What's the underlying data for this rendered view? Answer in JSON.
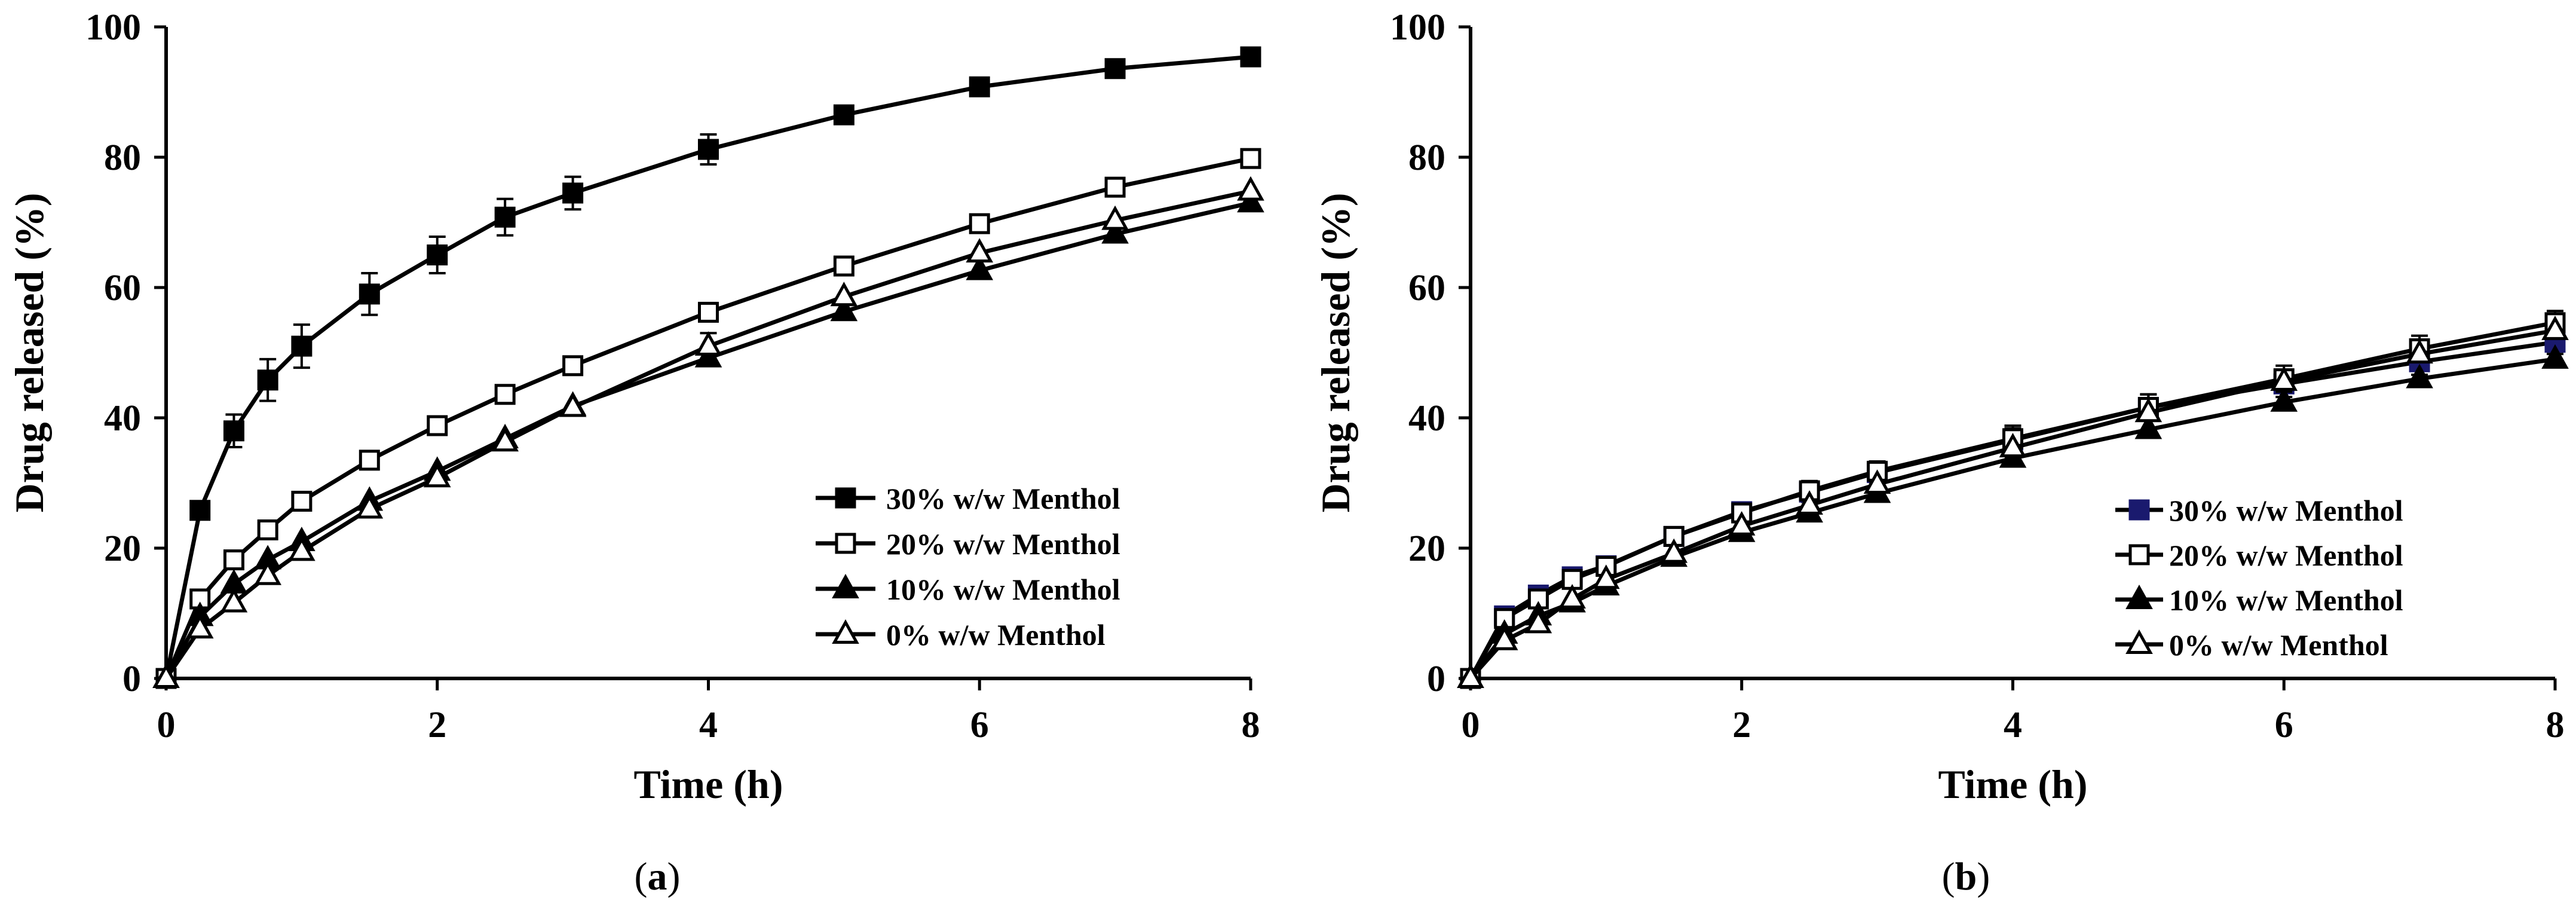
{
  "chart_data": [
    {
      "id": "a",
      "type": "line",
      "caption": {
        "open": "(",
        "letter": "a",
        "close": ")"
      },
      "xlabel": "Time (h)",
      "ylabel": "Drug released (%)",
      "xlim": [
        0,
        8
      ],
      "ylim": [
        0,
        100
      ],
      "xticks": [
        "0",
        "2",
        "4",
        "6",
        "8"
      ],
      "yticks": [
        "0",
        "20",
        "40",
        "60",
        "80",
        "100"
      ],
      "grid": false,
      "legend": "center-right",
      "x": [
        0,
        0.25,
        0.5,
        0.75,
        1,
        1.5,
        2,
        2.5,
        3,
        4,
        5,
        6,
        7,
        8
      ],
      "series": [
        {
          "name": "30% w/w Menthol",
          "marker": "square-filled",
          "color": "#000000",
          "values": [
            0,
            25.8,
            38,
            45.8,
            51,
            59,
            65,
            70.8,
            74.5,
            81.2,
            86.5,
            90.8,
            93.6,
            95.4
          ],
          "errors": [
            0,
            0.8,
            2.5,
            3.2,
            3.3,
            3.2,
            2.8,
            2.8,
            2.5,
            2.3,
            1.3,
            1.0,
            1.0,
            0.8
          ]
        },
        {
          "name": "20% w/w Menthol",
          "marker": "square-open",
          "color": "#000000",
          "values": [
            0,
            12.2,
            18.2,
            22.8,
            27.2,
            33.5,
            38.8,
            43.6,
            48,
            56.2,
            63.3,
            69.8,
            75.4,
            79.8
          ],
          "errors": [
            0,
            0.6,
            0.8,
            0.8,
            0.8,
            0.8,
            0.8,
            0.8,
            0.8,
            1.0,
            0.8,
            0.8,
            0.8,
            0.8
          ]
        },
        {
          "name": "10% w/w Menthol",
          "marker": "triangle-filled",
          "color": "#000000",
          "values": [
            0,
            9.5,
            14.5,
            18.2,
            21,
            27.2,
            31.8,
            36.8,
            41.8,
            49.2,
            56.3,
            62.6,
            68.2,
            73
          ],
          "errors": [
            0,
            0.5,
            0.6,
            0.6,
            0.6,
            0.6,
            0.8,
            0.8,
            0.8,
            0.9,
            0.8,
            0.8,
            0.8,
            0.8
          ]
        },
        {
          "name": "0% w/w Menthol",
          "marker": "triangle-open",
          "color": "#000000",
          "values": [
            0,
            7.6,
            11.6,
            15.8,
            19.5,
            26,
            30.8,
            36.3,
            41.6,
            51,
            58.6,
            65.3,
            70.3,
            74.8
          ],
          "errors": [
            0,
            0.5,
            0.6,
            0.6,
            0.6,
            0.8,
            0.8,
            0.8,
            0.8,
            2.0,
            0.8,
            0.8,
            0.8,
            0.8
          ]
        }
      ]
    },
    {
      "id": "b",
      "type": "line",
      "caption": {
        "open": "(",
        "letter": "b",
        "close": ")"
      },
      "xlabel": "Time (h)",
      "ylabel": "Drug released (%)",
      "xlim": [
        0,
        8
      ],
      "ylim": [
        0,
        100
      ],
      "xticks": [
        "0",
        "2",
        "4",
        "6",
        "8"
      ],
      "yticks": [
        "0",
        "20",
        "40",
        "60",
        "80",
        "100"
      ],
      "grid": false,
      "legend": "center-right",
      "x": [
        0,
        0.25,
        0.5,
        0.75,
        1,
        1.5,
        2,
        2.5,
        3,
        4,
        5,
        6,
        7,
        8
      ],
      "series": [
        {
          "name": "30% w/w Menthol",
          "marker": "square-filled",
          "color": "#1a1a6e",
          "values": [
            0,
            9.6,
            12.8,
            15.6,
            17.3,
            21.8,
            25.6,
            28.6,
            31.6,
            36.6,
            41.6,
            45.2,
            48.6,
            51.6
          ],
          "errors": [
            0,
            0.6,
            0.8,
            0.8,
            0.8,
            1.0,
            1.2,
            1.5,
            1.5,
            1.8,
            2.0,
            2.0,
            2.0,
            1.8
          ]
        },
        {
          "name": "20% w/w Menthol",
          "marker": "square-open",
          "color": "#000000",
          "values": [
            0,
            9.2,
            12.2,
            15.2,
            17.2,
            21.8,
            25.4,
            28.8,
            31.8,
            36.8,
            41.6,
            46,
            50.6,
            54.6
          ],
          "errors": [
            0,
            0.6,
            0.8,
            0.8,
            0.8,
            1.0,
            1.0,
            1.5,
            1.5,
            2.0,
            2.0,
            2.0,
            2.0,
            1.8
          ]
        },
        {
          "name": "10% w/w Menthol",
          "marker": "triangle-filled",
          "color": "#000000",
          "values": [
            0,
            6.8,
            9.6,
            11.6,
            14.2,
            18.6,
            22.4,
            25.4,
            28.4,
            33.8,
            38.2,
            42.4,
            46,
            49
          ],
          "errors": [
            0,
            0.5,
            0.6,
            0.6,
            0.6,
            0.8,
            0.8,
            0.8,
            0.8,
            1.0,
            1.0,
            1.0,
            1.0,
            1.0
          ]
        },
        {
          "name": "0% w/w Menthol",
          "marker": "triangle-open",
          "color": "#000000",
          "values": [
            0,
            5.8,
            8.4,
            12.2,
            15.2,
            19.2,
            23.4,
            26.6,
            29.8,
            35.4,
            40.8,
            45.6,
            49.8,
            53.4
          ],
          "errors": [
            0,
            0.5,
            0.6,
            0.6,
            0.6,
            0.8,
            0.8,
            0.8,
            0.8,
            1.0,
            1.0,
            1.0,
            1.0,
            1.0
          ]
        }
      ]
    }
  ]
}
